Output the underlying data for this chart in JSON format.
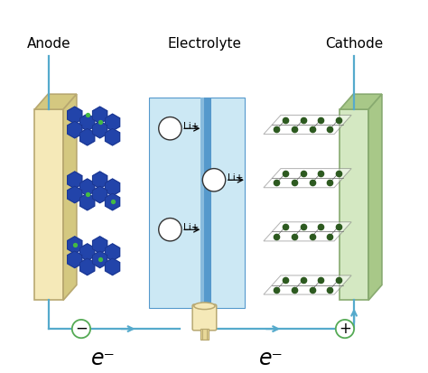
{
  "figsize": [
    4.74,
    4.13
  ],
  "dpi": 100,
  "bg_color": "#ffffff",
  "anode_color": "#f5e9b8",
  "anode_edge": "#b8a870",
  "anode_side_color": "#d4c880",
  "cathode_color": "#d4e8c2",
  "cathode_edge": "#88aa70",
  "cathode_side_color": "#a8c888",
  "electrolyte_bg": "#cce8f4",
  "electrolyte_sep_color": "#5599cc",
  "graphene_hex_color": "#2244aa",
  "graphene_hex_edge": "#1a3388",
  "graphene_dot_color": "#44bb44",
  "cathode_dot_color": "#2d5a20",
  "cathode_grid_color": "#666666",
  "circuit_color": "#55aacc",
  "li_circle_color": "#ffffff",
  "li_circle_edge": "#333333",
  "minus_circle_edge": "#55aa55",
  "plus_circle_edge": "#55aa55",
  "load_color": "#f5e9b8",
  "load_edge": "#b8a870",
  "title_anode": "Anode",
  "title_electrolyte": "Electrolyte",
  "title_cathode": "Cathode",
  "label_eminus1": "e⁻",
  "label_eminus2": "e⁻"
}
